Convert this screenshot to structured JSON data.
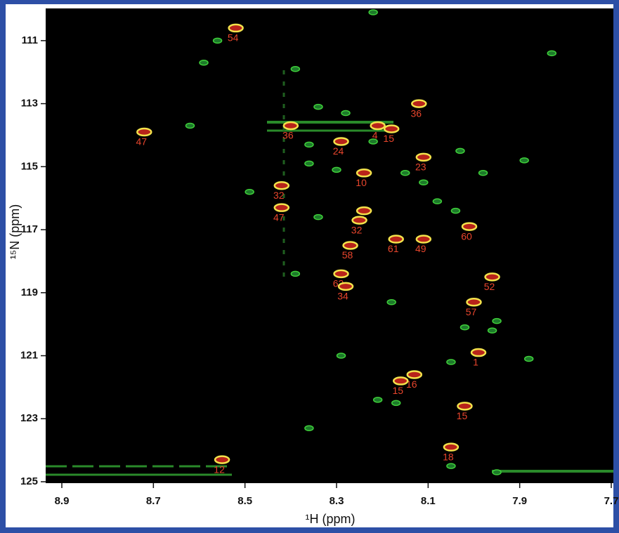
{
  "chart_data": {
    "type": "scatter",
    "x_label": "¹H (ppm)",
    "y_label": "¹⁵N (ppm)",
    "xlim": [
      8.9,
      7.7
    ],
    "ylim": [
      110,
      125
    ],
    "xticks": [
      8.9,
      8.7,
      8.5,
      8.3,
      8.1,
      7.9,
      7.7
    ],
    "yticks": [
      111,
      113,
      115,
      117,
      119,
      121,
      123,
      125
    ],
    "x_reversed": true,
    "y_reversed": true,
    "label_color": "#e8452c",
    "series": [
      {
        "color": "#f3e24b",
        "x": [
          8.52,
          8.72,
          8.12,
          8.21,
          8.18,
          8.4,
          8.29,
          8.11,
          8.42,
          8.24,
          8.42,
          8.24,
          8.25,
          8.27,
          8.17,
          8.11,
          8.01,
          7.96,
          8.29,
          8.28,
          8.0,
          7.99,
          8.13,
          8.16,
          8.02,
          8.05,
          8.55
        ],
        "values": [
          110.6,
          113.9,
          113.0,
          113.7,
          113.8,
          113.7,
          114.2,
          114.7,
          115.6,
          115.2,
          116.3,
          116.4,
          116.7,
          117.5,
          117.3,
          117.3,
          116.9,
          118.5,
          118.4,
          118.8,
          119.3,
          120.9,
          121.6,
          121.8,
          122.6,
          123.9,
          124.3
        ],
        "labels": [
          "54",
          "47",
          "36",
          "4",
          "15",
          "36",
          "24",
          "23",
          "32",
          "10",
          "47",
          "27",
          "32",
          "58",
          "61",
          "49",
          "60",
          "52",
          "62",
          "34",
          "57",
          "1",
          "16",
          "15",
          "15",
          "18",
          "12"
        ]
      },
      {
        "color": "#3fcf3a",
        "x": [
          8.22,
          8.56,
          8.59,
          7.83,
          8.39,
          8.34,
          8.28,
          8.62,
          8.36,
          8.36,
          8.3,
          8.22,
          8.03,
          7.89,
          7.98,
          8.15,
          8.11,
          8.49,
          8.34,
          8.08,
          8.04,
          8.39,
          8.18,
          7.95,
          8.02,
          7.96,
          7.88,
          8.29,
          8.05,
          8.21,
          8.17,
          8.36,
          7.95,
          8.05
        ],
        "values": [
          110.1,
          111.0,
          111.7,
          111.4,
          111.9,
          113.1,
          113.3,
          113.7,
          114.3,
          114.9,
          115.1,
          114.2,
          114.5,
          114.8,
          115.2,
          115.2,
          115.5,
          115.8,
          116.6,
          116.1,
          116.4,
          118.4,
          119.3,
          119.9,
          120.1,
          120.2,
          121.1,
          121.0,
          121.2,
          122.4,
          122.5,
          123.3,
          124.7,
          124.5
        ]
      }
    ]
  }
}
